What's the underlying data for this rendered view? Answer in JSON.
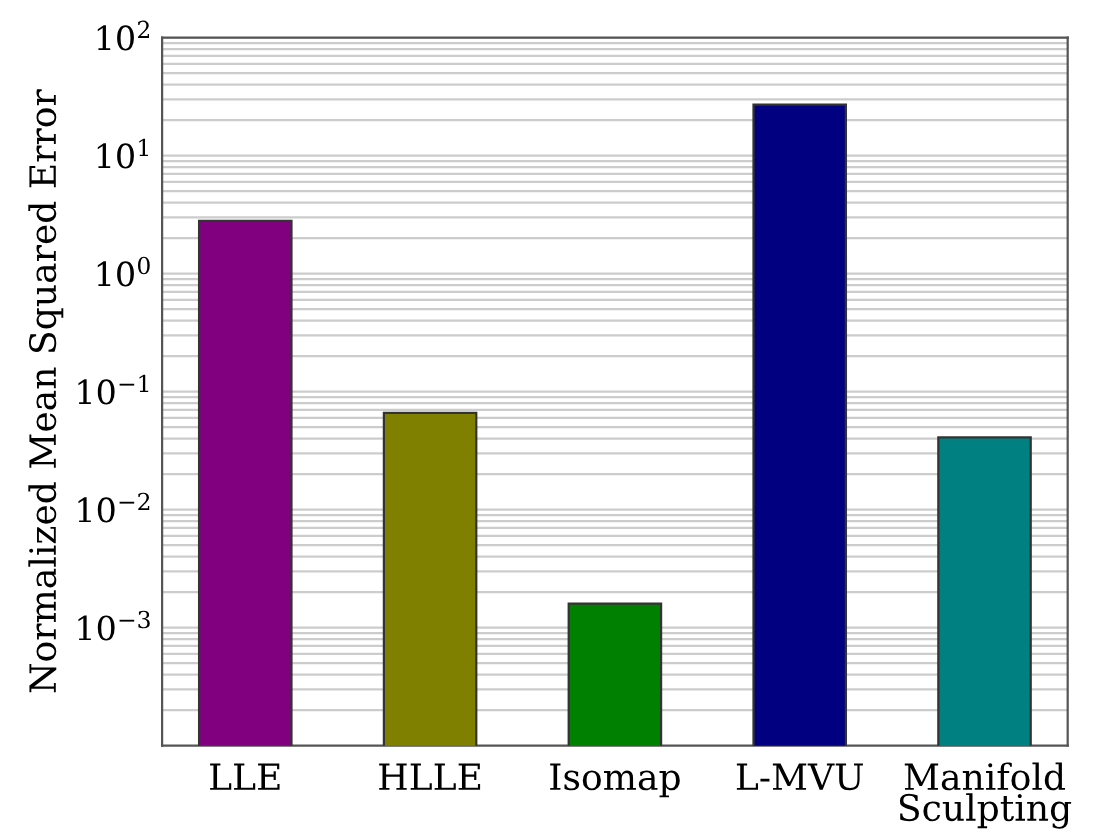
{
  "chart_data": {
    "type": "bar",
    "ylabel": "Normalized Mean Squared Error",
    "categories": [
      "LLE",
      "HLLE",
      "Isomap",
      "L-MVU",
      "Manifold\nSculpting"
    ],
    "values": [
      2.8,
      0.066,
      0.0016,
      27,
      0.041
    ],
    "colors": [
      "#800080",
      "#808000",
      "#008000",
      "#000080",
      "#008080"
    ],
    "log": "y",
    "ylim": [
      0.0001,
      100
    ],
    "yticks": [
      {
        "value": 0.001,
        "label": "10$^{−3}$"
      },
      {
        "value": 0.01,
        "label": "10$^{−2}$"
      },
      {
        "value": 0.1,
        "label": "10$^{−1}$"
      },
      {
        "value": 1,
        "label": "10$^{0}$"
      },
      {
        "value": 10,
        "label": "10$^{1}$"
      },
      {
        "value": 100,
        "label": "10$^{2}$"
      }
    ],
    "grid": "y"
  }
}
